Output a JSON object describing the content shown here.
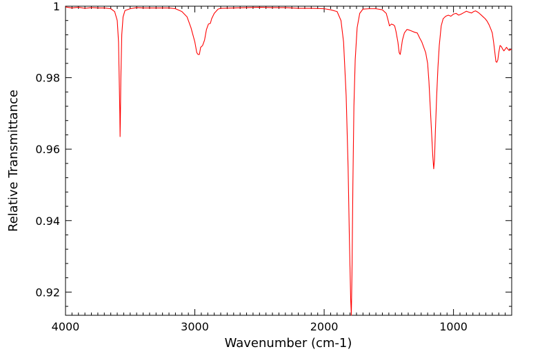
{
  "chart_data": {
    "type": "line",
    "title": "",
    "xlabel": "Wavenumber (cm-1)",
    "ylabel": "Relative Transmittance",
    "xlim": [
      4000,
      550
    ],
    "ylim": [
      0.9135,
      1.0
    ],
    "x_reversed": true,
    "x_ticks": [
      {
        "value": 4000,
        "label": "4000"
      },
      {
        "value": 3000,
        "label": "3000"
      },
      {
        "value": 2000,
        "label": "2000"
      },
      {
        "value": 1000,
        "label": "1000"
      }
    ],
    "y_ticks": [
      {
        "value": 0.92,
        "label": "0.92"
      },
      {
        "value": 0.94,
        "label": "0.94"
      },
      {
        "value": 0.96,
        "label": "0.96"
      },
      {
        "value": 0.98,
        "label": "0.98"
      },
      {
        "value": 1.0,
        "label": "1"
      }
    ],
    "grid": false,
    "series": [
      {
        "color": "#ff0000",
        "points": [
          [
            4000,
            0.9998
          ],
          [
            3950,
            0.9995
          ],
          [
            3900,
            0.9997
          ],
          [
            3850,
            0.9994
          ],
          [
            3800,
            0.9996
          ],
          [
            3750,
            0.9995
          ],
          [
            3700,
            0.9995
          ],
          [
            3650,
            0.9993
          ],
          [
            3620,
            0.9985
          ],
          [
            3600,
            0.996
          ],
          [
            3590,
            0.99
          ],
          [
            3585,
            0.98
          ],
          [
            3580,
            0.97
          ],
          [
            3578,
            0.9635
          ],
          [
            3576,
            0.968
          ],
          [
            3572,
            0.98
          ],
          [
            3565,
            0.992
          ],
          [
            3555,
            0.997
          ],
          [
            3540,
            0.9988
          ],
          [
            3500,
            0.9993
          ],
          [
            3450,
            0.9996
          ],
          [
            3400,
            0.9995
          ],
          [
            3300,
            0.9995
          ],
          [
            3200,
            0.9995
          ],
          [
            3150,
            0.9993
          ],
          [
            3100,
            0.9985
          ],
          [
            3060,
            0.997
          ],
          [
            3030,
            0.994
          ],
          [
            3000,
            0.99
          ],
          [
            2985,
            0.987
          ],
          [
            2975,
            0.9865
          ],
          [
            2965,
            0.9865
          ],
          [
            2955,
            0.9885
          ],
          [
            2940,
            0.989
          ],
          [
            2925,
            0.9905
          ],
          [
            2910,
            0.9935
          ],
          [
            2895,
            0.995
          ],
          [
            2880,
            0.9952
          ],
          [
            2870,
            0.9965
          ],
          [
            2850,
            0.998
          ],
          [
            2820,
            0.9992
          ],
          [
            2800,
            0.9994
          ],
          [
            2700,
            0.9995
          ],
          [
            2600,
            0.9996
          ],
          [
            2500,
            0.9997
          ],
          [
            2400,
            0.9996
          ],
          [
            2300,
            0.9996
          ],
          [
            2200,
            0.9994
          ],
          [
            2100,
            0.9994
          ],
          [
            2000,
            0.9993
          ],
          [
            1950,
            0.999
          ],
          [
            1900,
            0.9985
          ],
          [
            1870,
            0.996
          ],
          [
            1850,
            0.99
          ],
          [
            1830,
            0.975
          ],
          [
            1815,
            0.955
          ],
          [
            1805,
            0.935
          ],
          [
            1795,
            0.918
          ],
          [
            1790,
            0.9135
          ],
          [
            1785,
            0.925
          ],
          [
            1778,
            0.95
          ],
          [
            1770,
            0.972
          ],
          [
            1760,
            0.985
          ],
          [
            1745,
            0.994
          ],
          [
            1725,
            0.998
          ],
          [
            1700,
            0.9992
          ],
          [
            1650,
            0.9993
          ],
          [
            1600,
            0.9993
          ],
          [
            1550,
            0.999
          ],
          [
            1520,
            0.998
          ],
          [
            1505,
            0.996
          ],
          [
            1495,
            0.9945
          ],
          [
            1480,
            0.995
          ],
          [
            1465,
            0.9948
          ],
          [
            1455,
            0.9945
          ],
          [
            1445,
            0.993
          ],
          [
            1430,
            0.99
          ],
          [
            1420,
            0.987
          ],
          [
            1412,
            0.9865
          ],
          [
            1405,
            0.988
          ],
          [
            1395,
            0.9905
          ],
          [
            1380,
            0.9925
          ],
          [
            1360,
            0.9935
          ],
          [
            1340,
            0.9933
          ],
          [
            1320,
            0.993
          ],
          [
            1300,
            0.9927
          ],
          [
            1280,
            0.9925
          ],
          [
            1260,
            0.991
          ],
          [
            1245,
            0.99
          ],
          [
            1230,
            0.9885
          ],
          [
            1215,
            0.987
          ],
          [
            1200,
            0.984
          ],
          [
            1190,
            0.979
          ],
          [
            1180,
            0.972
          ],
          [
            1170,
            0.965
          ],
          [
            1160,
            0.958
          ],
          [
            1153,
            0.9545
          ],
          [
            1147,
            0.957
          ],
          [
            1140,
            0.965
          ],
          [
            1130,
            0.975
          ],
          [
            1120,
            0.983
          ],
          [
            1110,
            0.989
          ],
          [
            1095,
            0.9945
          ],
          [
            1080,
            0.9965
          ],
          [
            1060,
            0.9972
          ],
          [
            1040,
            0.9975
          ],
          [
            1020,
            0.9972
          ],
          [
            1000,
            0.9978
          ],
          [
            980,
            0.998
          ],
          [
            960,
            0.9975
          ],
          [
            940,
            0.9978
          ],
          [
            920,
            0.9982
          ],
          [
            900,
            0.9986
          ],
          [
            880,
            0.9983
          ],
          [
            860,
            0.9981
          ],
          [
            845,
            0.9985
          ],
          [
            830,
            0.9987
          ],
          [
            815,
            0.9984
          ],
          [
            800,
            0.998
          ],
          [
            785,
            0.9975
          ],
          [
            770,
            0.997
          ],
          [
            755,
            0.9965
          ],
          [
            740,
            0.9958
          ],
          [
            725,
            0.9948
          ],
          [
            710,
            0.9935
          ],
          [
            700,
            0.9925
          ],
          [
            690,
            0.99
          ],
          [
            680,
            0.987
          ],
          [
            672,
            0.9845
          ],
          [
            665,
            0.9843
          ],
          [
            657,
            0.985
          ],
          [
            650,
            0.987
          ],
          [
            640,
            0.989
          ],
          [
            630,
            0.9887
          ],
          [
            620,
            0.988
          ],
          [
            610,
            0.9875
          ],
          [
            600,
            0.988
          ],
          [
            590,
            0.9885
          ],
          [
            580,
            0.988
          ],
          [
            570,
            0.9876
          ],
          [
            560,
            0.9878
          ],
          [
            550,
            0.988
          ]
        ]
      }
    ]
  }
}
